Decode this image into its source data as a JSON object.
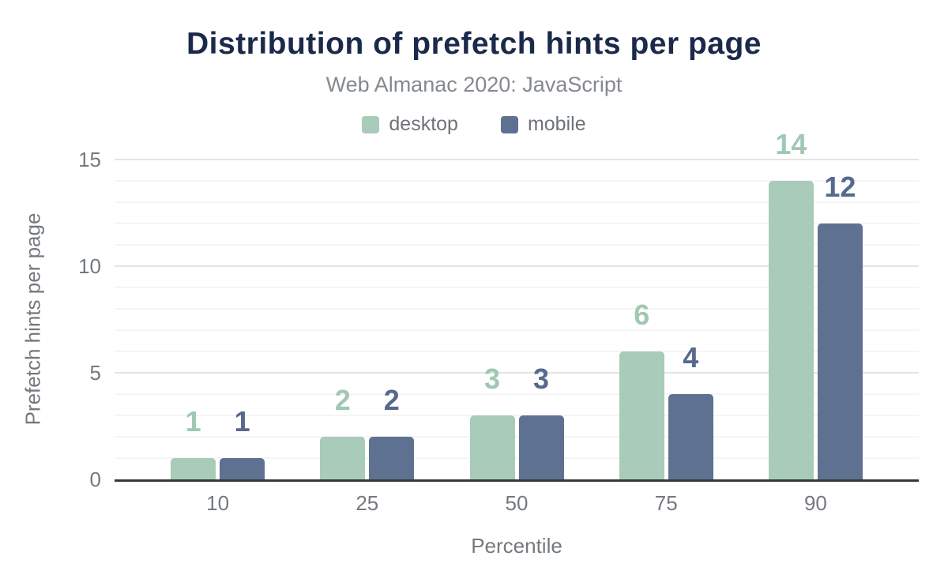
{
  "chart_data": {
    "type": "bar",
    "title": "Distribution of prefetch hints per page",
    "subtitle": "Web Almanac 2020: JavaScript",
    "xlabel": "Percentile",
    "ylabel": "Prefetch hints per page",
    "categories": [
      "10",
      "25",
      "50",
      "75",
      "90"
    ],
    "series": [
      {
        "name": "desktop",
        "color": "#a8cbba",
        "label_color": "#a0c8b3",
        "values": [
          1,
          2,
          3,
          6,
          14
        ]
      },
      {
        "name": "mobile",
        "color": "#5f7190",
        "label_color": "#57698c",
        "values": [
          1,
          2,
          3,
          4,
          12
        ]
      }
    ],
    "ylim": [
      0,
      15
    ],
    "yticks": [
      0,
      5,
      10,
      15
    ],
    "minor_grid_step": 1,
    "grid": "on",
    "legend_position": "top"
  },
  "colors": {
    "title": "#1b2a4b",
    "subtitle": "#84898f",
    "axis_text": "#74797f",
    "legend_text": "#6d7379",
    "axis_line": "#36393c",
    "major_grid": "#e4e4e4",
    "minor_grid": "#f5f5f5",
    "background": "#ffffff"
  }
}
